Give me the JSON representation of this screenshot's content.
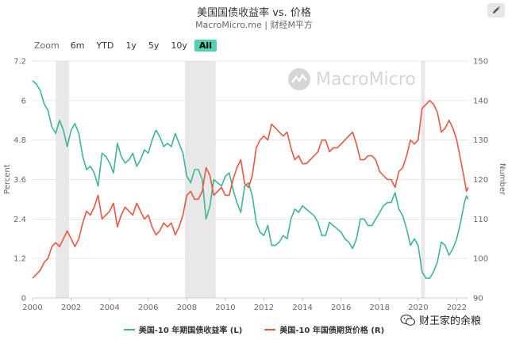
{
  "header": {
    "title": "美国国债收益率 vs. 价格",
    "subtitle": "MacroMicro.me | 财经M平方"
  },
  "zoom": {
    "label": "Zoom",
    "buttons": [
      "6m",
      "YTD",
      "1y",
      "5y",
      "10y",
      "All"
    ],
    "active": "All"
  },
  "watermark": {
    "text": "MacroMicro"
  },
  "wechat": {
    "text": "财王家的余粮"
  },
  "colors": {
    "yield": "#3eb595",
    "price": "#e9573f",
    "recession": "#e8e8e8"
  },
  "chart_data": {
    "type": "line",
    "ylabel_left": "Percent",
    "ylabel_right": "Number",
    "x_ticks": [
      "2000",
      "2002",
      "2004",
      "2006",
      "2008",
      "2010",
      "2012",
      "2014",
      "2016",
      "2018",
      "2020",
      "2022"
    ],
    "xlim": [
      2000.0,
      2022.6
    ],
    "ylim_left": [
      0,
      7.2
    ],
    "yticks_left": [
      "0",
      "1.2",
      "2.4",
      "3.6",
      "4.8",
      "6",
      "7.2"
    ],
    "ylim_right": [
      90,
      150
    ],
    "yticks_right": [
      "90",
      "100",
      "110",
      "120",
      "130",
      "140",
      "150"
    ],
    "recession_bands": [
      [
        2001.2,
        2001.9
      ],
      [
        2007.9,
        2009.5
      ],
      [
        2020.15,
        2020.35
      ]
    ],
    "series": [
      {
        "name": "美国-10 年期国债收益率 (L)",
        "axis": "left",
        "points": [
          [
            2000.0,
            6.6
          ],
          [
            2000.2,
            6.5
          ],
          [
            2000.4,
            6.3
          ],
          [
            2000.6,
            5.9
          ],
          [
            2000.8,
            5.7
          ],
          [
            2001.0,
            5.2
          ],
          [
            2001.2,
            5.0
          ],
          [
            2001.4,
            5.4
          ],
          [
            2001.6,
            5.1
          ],
          [
            2001.8,
            4.6
          ],
          [
            2002.0,
            5.1
          ],
          [
            2002.2,
            5.3
          ],
          [
            2002.4,
            5.0
          ],
          [
            2002.6,
            4.3
          ],
          [
            2002.8,
            3.9
          ],
          [
            2003.0,
            4.0
          ],
          [
            2003.2,
            3.8
          ],
          [
            2003.4,
            3.4
          ],
          [
            2003.6,
            4.4
          ],
          [
            2003.8,
            4.3
          ],
          [
            2004.0,
            4.1
          ],
          [
            2004.2,
            3.8
          ],
          [
            2004.4,
            4.7
          ],
          [
            2004.6,
            4.3
          ],
          [
            2004.8,
            4.1
          ],
          [
            2005.0,
            4.2
          ],
          [
            2005.2,
            4.4
          ],
          [
            2005.4,
            4.0
          ],
          [
            2005.6,
            4.2
          ],
          [
            2005.8,
            4.5
          ],
          [
            2006.0,
            4.4
          ],
          [
            2006.2,
            4.8
          ],
          [
            2006.4,
            5.1
          ],
          [
            2006.6,
            4.9
          ],
          [
            2006.8,
            4.6
          ],
          [
            2007.0,
            4.7
          ],
          [
            2007.2,
            4.6
          ],
          [
            2007.4,
            5.0
          ],
          [
            2007.6,
            4.7
          ],
          [
            2007.8,
            4.4
          ],
          [
            2008.0,
            3.7
          ],
          [
            2008.2,
            3.5
          ],
          [
            2008.4,
            3.9
          ],
          [
            2008.6,
            3.9
          ],
          [
            2008.8,
            3.6
          ],
          [
            2009.0,
            2.4
          ],
          [
            2009.2,
            2.8
          ],
          [
            2009.4,
            3.6
          ],
          [
            2009.6,
            3.5
          ],
          [
            2009.8,
            3.4
          ],
          [
            2010.0,
            3.7
          ],
          [
            2010.2,
            3.8
          ],
          [
            2010.4,
            3.3
          ],
          [
            2010.6,
            2.9
          ],
          [
            2010.8,
            2.6
          ],
          [
            2011.0,
            3.4
          ],
          [
            2011.2,
            3.5
          ],
          [
            2011.4,
            3.1
          ],
          [
            2011.6,
            2.3
          ],
          [
            2011.8,
            2.0
          ],
          [
            2012.0,
            1.9
          ],
          [
            2012.2,
            2.2
          ],
          [
            2012.4,
            1.6
          ],
          [
            2012.6,
            1.6
          ],
          [
            2012.8,
            1.7
          ],
          [
            2013.0,
            1.9
          ],
          [
            2013.2,
            1.8
          ],
          [
            2013.4,
            2.4
          ],
          [
            2013.6,
            2.7
          ],
          [
            2013.8,
            2.6
          ],
          [
            2014.0,
            2.8
          ],
          [
            2014.2,
            2.7
          ],
          [
            2014.4,
            2.6
          ],
          [
            2014.6,
            2.5
          ],
          [
            2014.8,
            2.3
          ],
          [
            2015.0,
            1.9
          ],
          [
            2015.2,
            1.9
          ],
          [
            2015.4,
            2.3
          ],
          [
            2015.6,
            2.2
          ],
          [
            2015.8,
            2.1
          ],
          [
            2016.0,
            2.0
          ],
          [
            2016.2,
            1.8
          ],
          [
            2016.4,
            1.7
          ],
          [
            2016.6,
            1.5
          ],
          [
            2016.8,
            1.8
          ],
          [
            2017.0,
            2.4
          ],
          [
            2017.2,
            2.4
          ],
          [
            2017.4,
            2.2
          ],
          [
            2017.6,
            2.2
          ],
          [
            2017.8,
            2.4
          ],
          [
            2018.0,
            2.6
          ],
          [
            2018.2,
            2.8
          ],
          [
            2018.4,
            2.9
          ],
          [
            2018.6,
            2.9
          ],
          [
            2018.8,
            3.2
          ],
          [
            2019.0,
            2.7
          ],
          [
            2019.2,
            2.5
          ],
          [
            2019.4,
            2.1
          ],
          [
            2019.6,
            1.6
          ],
          [
            2019.8,
            1.8
          ],
          [
            2020.0,
            1.6
          ],
          [
            2020.2,
            0.8
          ],
          [
            2020.4,
            0.6
          ],
          [
            2020.6,
            0.6
          ],
          [
            2020.8,
            0.8
          ],
          [
            2021.0,
            1.1
          ],
          [
            2021.2,
            1.7
          ],
          [
            2021.4,
            1.6
          ],
          [
            2021.6,
            1.3
          ],
          [
            2021.8,
            1.5
          ],
          [
            2022.0,
            1.8
          ],
          [
            2022.2,
            2.3
          ],
          [
            2022.4,
            2.9
          ],
          [
            2022.5,
            3.1
          ],
          [
            2022.6,
            3.0
          ]
        ]
      },
      {
        "name": "美国-10 年国债期货价格 (R)",
        "axis": "right",
        "points": [
          [
            2000.0,
            95
          ],
          [
            2000.2,
            96
          ],
          [
            2000.4,
            97
          ],
          [
            2000.6,
            99
          ],
          [
            2000.8,
            100
          ],
          [
            2001.0,
            103
          ],
          [
            2001.2,
            104
          ],
          [
            2001.4,
            103
          ],
          [
            2001.6,
            105
          ],
          [
            2001.8,
            107
          ],
          [
            2002.0,
            105
          ],
          [
            2002.2,
            103
          ],
          [
            2002.4,
            105
          ],
          [
            2002.6,
            109
          ],
          [
            2002.8,
            112
          ],
          [
            2003.0,
            111
          ],
          [
            2003.2,
            113
          ],
          [
            2003.4,
            116
          ],
          [
            2003.6,
            110
          ],
          [
            2003.8,
            111
          ],
          [
            2004.0,
            112
          ],
          [
            2004.2,
            114
          ],
          [
            2004.4,
            108
          ],
          [
            2004.6,
            111
          ],
          [
            2004.8,
            113
          ],
          [
            2005.0,
            112
          ],
          [
            2005.2,
            111
          ],
          [
            2005.4,
            114
          ],
          [
            2005.6,
            112
          ],
          [
            2005.8,
            110
          ],
          [
            2006.0,
            111
          ],
          [
            2006.2,
            108
          ],
          [
            2006.4,
            106
          ],
          [
            2006.6,
            107
          ],
          [
            2006.8,
            109
          ],
          [
            2007.0,
            108
          ],
          [
            2007.2,
            109
          ],
          [
            2007.4,
            106
          ],
          [
            2007.6,
            108
          ],
          [
            2007.8,
            111
          ],
          [
            2008.0,
            116
          ],
          [
            2008.2,
            117
          ],
          [
            2008.4,
            115
          ],
          [
            2008.6,
            115
          ],
          [
            2008.8,
            117
          ],
          [
            2009.0,
            123
          ],
          [
            2009.2,
            121
          ],
          [
            2009.4,
            116
          ],
          [
            2009.6,
            117
          ],
          [
            2009.8,
            118
          ],
          [
            2010.0,
            116
          ],
          [
            2010.2,
            116
          ],
          [
            2010.4,
            120
          ],
          [
            2010.6,
            123
          ],
          [
            2010.8,
            125
          ],
          [
            2011.0,
            119
          ],
          [
            2011.2,
            118
          ],
          [
            2011.4,
            121
          ],
          [
            2011.6,
            128
          ],
          [
            2011.8,
            130
          ],
          [
            2012.0,
            131
          ],
          [
            2012.2,
            130
          ],
          [
            2012.4,
            134
          ],
          [
            2012.6,
            133
          ],
          [
            2012.8,
            132
          ],
          [
            2013.0,
            131
          ],
          [
            2013.2,
            132
          ],
          [
            2013.4,
            128
          ],
          [
            2013.6,
            125
          ],
          [
            2013.8,
            126
          ],
          [
            2014.0,
            124
          ],
          [
            2014.2,
            124
          ],
          [
            2014.4,
            125
          ],
          [
            2014.6,
            126
          ],
          [
            2014.8,
            127
          ],
          [
            2015.0,
            130
          ],
          [
            2015.2,
            130
          ],
          [
            2015.4,
            127
          ],
          [
            2015.6,
            128
          ],
          [
            2015.8,
            128
          ],
          [
            2016.0,
            129
          ],
          [
            2016.2,
            130
          ],
          [
            2016.4,
            131
          ],
          [
            2016.6,
            132
          ],
          [
            2016.8,
            129
          ],
          [
            2017.0,
            125
          ],
          [
            2017.2,
            125
          ],
          [
            2017.4,
            126
          ],
          [
            2017.6,
            126
          ],
          [
            2017.8,
            125
          ],
          [
            2018.0,
            122
          ],
          [
            2018.2,
            121
          ],
          [
            2018.4,
            120
          ],
          [
            2018.6,
            120
          ],
          [
            2018.8,
            118
          ],
          [
            2019.0,
            122
          ],
          [
            2019.2,
            123
          ],
          [
            2019.4,
            126
          ],
          [
            2019.6,
            130
          ],
          [
            2019.8,
            129
          ],
          [
            2020.0,
            130
          ],
          [
            2020.2,
            138
          ],
          [
            2020.4,
            139
          ],
          [
            2020.6,
            140
          ],
          [
            2020.8,
            139
          ],
          [
            2021.0,
            137
          ],
          [
            2021.2,
            132
          ],
          [
            2021.4,
            133
          ],
          [
            2021.6,
            135
          ],
          [
            2021.8,
            133
          ],
          [
            2022.0,
            130
          ],
          [
            2022.2,
            125
          ],
          [
            2022.4,
            120
          ],
          [
            2022.5,
            117
          ],
          [
            2022.6,
            118
          ]
        ]
      }
    ]
  }
}
